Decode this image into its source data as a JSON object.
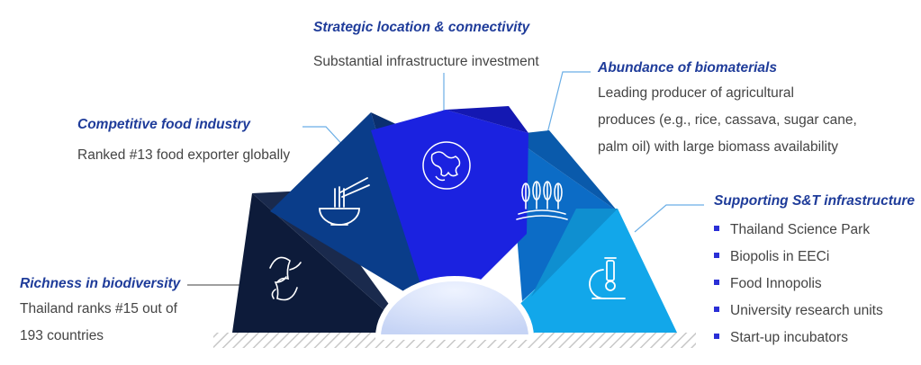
{
  "colors": {
    "title": "#1f3c9a",
    "body": "#444444",
    "bullet": "#2a2fd6",
    "leader": "#6aaee6",
    "segment_biodiversity": "#0d1b3a",
    "segment_food": "#0a3d8a",
    "segment_location": "#1b22e0",
    "segment_biomaterials": "#0c6cc6",
    "segment_snt": "#12a7ea"
  },
  "callouts": {
    "location": {
      "title": "Strategic location & connectivity",
      "body": "Substantial infrastructure investment",
      "icon": "globe-icon"
    },
    "food": {
      "title": "Competitive food industry",
      "body": "Ranked #13 food exporter globally",
      "icon": "noodle-bowl-icon"
    },
    "biomaterials": {
      "title": "Abundance of biomaterials",
      "lines": [
        "Leading producer of agricultural",
        "produces (e.g., rice, cassava, sugar cane,",
        "palm oil) with large biomass availability"
      ],
      "icon": "wheat-icon"
    },
    "biodiversity": {
      "title": "Richness in biodiversity",
      "lines": [
        "Thailand ranks #15 out of",
        "193 countries"
      ],
      "icon": "dolphins-icon"
    },
    "snt": {
      "title": "Supporting S&T infrastructure",
      "items": [
        "Thailand Science Park",
        "Biopolis in EECi",
        "Food Innopolis",
        "University research units",
        "Start-up incubators"
      ],
      "icon": "microscope-icon"
    }
  }
}
